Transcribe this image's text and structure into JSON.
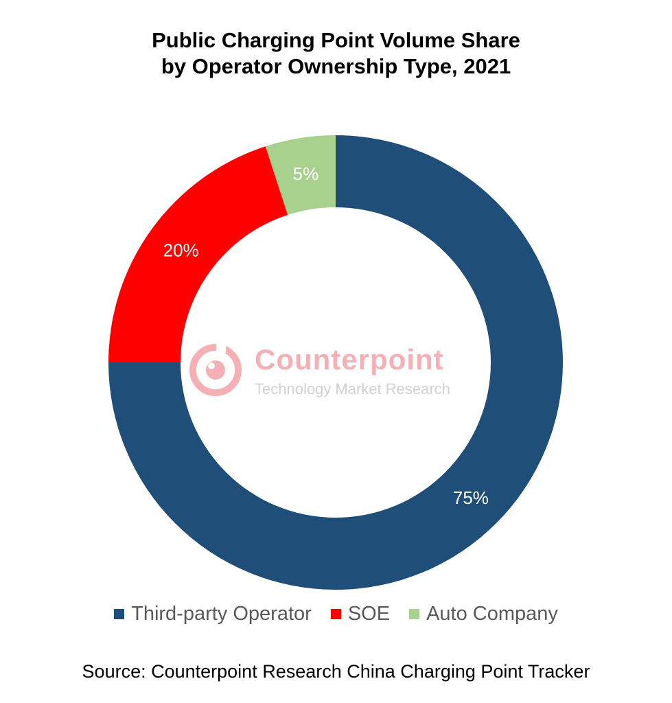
{
  "chart_data": {
    "type": "pie",
    "variant": "donut",
    "title_lines": [
      "Public Charging Point Volume Share",
      "by Operator Ownership Type, 2021"
    ],
    "series": [
      {
        "name": "Third-party Operator",
        "value": 75,
        "label": "75%",
        "color": "#1F4E79"
      },
      {
        "name": "SOE",
        "value": 20,
        "label": "20%",
        "color": "#FF0000"
      },
      {
        "name": "Auto Company",
        "value": 5,
        "label": "5%",
        "color": "#A9D18E"
      }
    ],
    "legend_position": "bottom",
    "source": "Source: Counterpoint Research China Charging Point Tracker"
  },
  "watermark": {
    "brand": "Counterpoint",
    "tagline": "Technology Market Research",
    "color": "#E0202A"
  }
}
